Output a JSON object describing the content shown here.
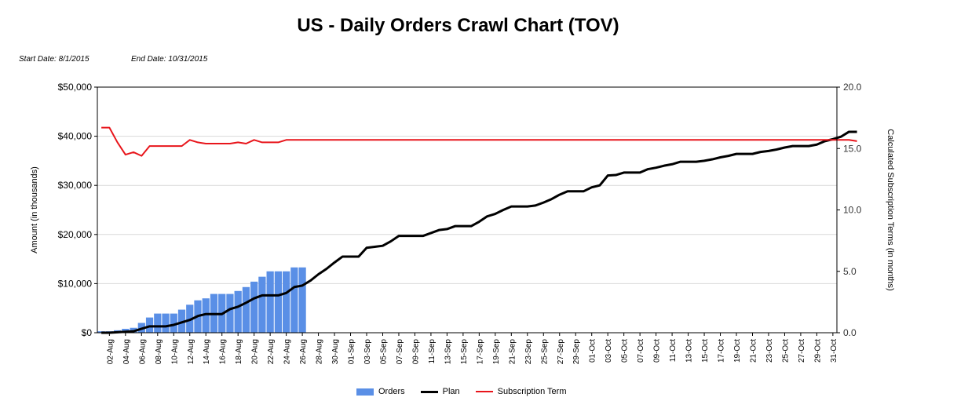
{
  "header": {
    "title": "US - Daily Orders Crawl Chart (TOV)",
    "start_date": "Start Date: 8/1/2015",
    "end_date": "End Date: 10/31/2015"
  },
  "colors": {
    "orders": "#5a8fe6",
    "plan": "#000000",
    "term": "#e8151b",
    "grid": "#d9d9d9"
  },
  "chart_data": {
    "type": "bar+line",
    "title": "US - Daily Orders Crawl Chart (TOV)",
    "ylabel": "Amount (in thousands)",
    "y2label": "Calculated Subscription Terms (in months)",
    "ylim": [
      0,
      50000
    ],
    "y2lim": [
      0,
      20
    ],
    "y_ticks": [
      "$0",
      "$10,000",
      "$20,000",
      "$30,000",
      "$40,000",
      "$50,000"
    ],
    "y2_ticks": [
      "0.0",
      "5.0",
      "10.0",
      "15.0",
      "20.0"
    ],
    "x_tick_labels": [
      "02-Aug",
      "04-Aug",
      "06-Aug",
      "08-Aug",
      "10-Aug",
      "12-Aug",
      "14-Aug",
      "16-Aug",
      "18-Aug",
      "20-Aug",
      "22-Aug",
      "24-Aug",
      "26-Aug",
      "28-Aug",
      "30-Aug",
      "01-Sep",
      "03-Sep",
      "05-Sep",
      "07-Sep",
      "09-Sep",
      "11-Sep",
      "13-Sep",
      "15-Sep",
      "17-Sep",
      "19-Sep",
      "21-Sep",
      "23-Sep",
      "25-Sep",
      "27-Sep",
      "29-Sep",
      "01-Oct",
      "03-Oct",
      "05-Oct",
      "07-Oct",
      "09-Oct",
      "11-Oct",
      "13-Oct",
      "15-Oct",
      "17-Oct",
      "19-Oct",
      "21-Oct",
      "23-Oct",
      "25-Oct",
      "27-Oct",
      "29-Oct",
      "31-Oct"
    ],
    "grid": true,
    "legend_position": "bottom",
    "series": [
      {
        "name": "Orders",
        "kind": "bar",
        "values": [
          300,
          300,
          500,
          800,
          1000,
          2000,
          3100,
          3900,
          3900,
          3900,
          4700,
          5700,
          6600,
          7000,
          7900,
          7900,
          7900,
          8500,
          9300,
          10400,
          11400,
          12500,
          12500,
          12500,
          13300,
          13300
        ]
      },
      {
        "name": "Plan",
        "kind": "line",
        "values": [
          0,
          0,
          100,
          200,
          300,
          800,
          1300,
          1300,
          1300,
          1600,
          2100,
          2600,
          3400,
          3800,
          3800,
          3800,
          4800,
          5300,
          6100,
          7000,
          7600,
          7600,
          7600,
          8100,
          9300,
          9600,
          10600,
          11900,
          13000,
          14300,
          15500,
          15500,
          15500,
          17300,
          17500,
          17700,
          18600,
          19700,
          19700,
          19700,
          19700,
          20300,
          20900,
          21100,
          21700,
          21700,
          21700,
          22600,
          23700,
          24200,
          25000,
          25700,
          25700,
          25700,
          25900,
          26500,
          27200,
          28100,
          28800,
          28800,
          28800,
          29600,
          30000,
          32000,
          32100,
          32600,
          32600,
          32600,
          33300,
          33600,
          34000,
          34300,
          34800,
          34800,
          34800,
          35000,
          35300,
          35700,
          36000,
          36400,
          36400,
          36400,
          36800,
          37000,
          37300,
          37700,
          38000,
          38000,
          38000,
          38300,
          39000,
          39400,
          39900,
          40900,
          40900
        ]
      },
      {
        "name": "Subscription Term",
        "kind": "line",
        "values": [
          16.7,
          16.7,
          15.5,
          14.5,
          14.7,
          14.4,
          15.2,
          15.2,
          15.2,
          15.2,
          15.2,
          15.7,
          15.5,
          15.4,
          15.4,
          15.4,
          15.4,
          15.5,
          15.4,
          15.7,
          15.5,
          15.5,
          15.5,
          15.7,
          15.7,
          15.7,
          15.7,
          15.7,
          15.7,
          15.7,
          15.7,
          15.7,
          15.7,
          15.7,
          15.7,
          15.7,
          15.7,
          15.7,
          15.7,
          15.7,
          15.7,
          15.7,
          15.7,
          15.7,
          15.7,
          15.7,
          15.7,
          15.7,
          15.7,
          15.7,
          15.7,
          15.7,
          15.7,
          15.7,
          15.7,
          15.7,
          15.7,
          15.7,
          15.7,
          15.7,
          15.7,
          15.7,
          15.7,
          15.7,
          15.7,
          15.7,
          15.7,
          15.7,
          15.7,
          15.7,
          15.7,
          15.7,
          15.7,
          15.7,
          15.7,
          15.7,
          15.7,
          15.7,
          15.7,
          15.7,
          15.7,
          15.7,
          15.7,
          15.7,
          15.7,
          15.7,
          15.7,
          15.7,
          15.7,
          15.7,
          15.7,
          15.7,
          15.7,
          15.7,
          15.6
        ]
      }
    ]
  }
}
